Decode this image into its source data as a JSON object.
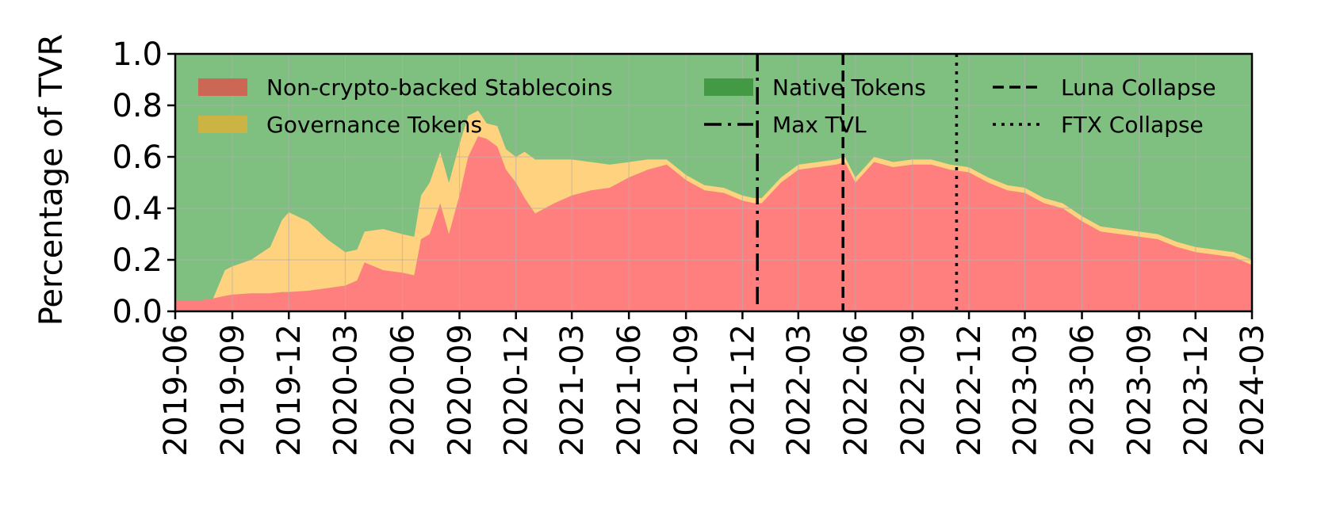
{
  "chart_data": {
    "type": "area",
    "title": "",
    "xlabel": "",
    "ylabel": "Percentage of TVR",
    "ylim": [
      0,
      1
    ],
    "xlim": [
      "2019-06",
      "2024-03"
    ],
    "grid": true,
    "legend_position": "top",
    "x_ticks": [
      "2019-06",
      "2019-09",
      "2019-12",
      "2020-03",
      "2020-06",
      "2020-09",
      "2020-12",
      "2021-03",
      "2021-06",
      "2021-09",
      "2021-12",
      "2022-03",
      "2022-06",
      "2022-09",
      "2022-12",
      "2023-03",
      "2023-06",
      "2023-09",
      "2023-12",
      "2024-03"
    ],
    "y_ticks": [
      "0.0",
      "0.2",
      "0.4",
      "0.6",
      "0.8",
      "1.0"
    ],
    "x": [
      "2019-06-01",
      "2019-07-01",
      "2019-08-01",
      "2019-08-20",
      "2019-09-01",
      "2019-10-01",
      "2019-11-01",
      "2019-11-20",
      "2019-12-01",
      "2020-01-01",
      "2020-02-01",
      "2020-03-01",
      "2020-03-20",
      "2020-04-01",
      "2020-05-01",
      "2020-06-01",
      "2020-06-20",
      "2020-07-01",
      "2020-07-15",
      "2020-08-01",
      "2020-08-15",
      "2020-09-01",
      "2020-09-15",
      "2020-10-01",
      "2020-10-15",
      "2020-11-01",
      "2020-11-15",
      "2020-12-01",
      "2020-12-15",
      "2021-01-01",
      "2021-02-01",
      "2021-03-01",
      "2021-04-01",
      "2021-05-01",
      "2021-06-01",
      "2021-07-01",
      "2021-08-01",
      "2021-09-01",
      "2021-10-01",
      "2021-11-01",
      "2021-12-01",
      "2021-12-20",
      "2022-01-01",
      "2022-02-01",
      "2022-03-01",
      "2022-04-01",
      "2022-05-01",
      "2022-05-15",
      "2022-06-01",
      "2022-07-01",
      "2022-08-01",
      "2022-09-01",
      "2022-10-01",
      "2022-11-01",
      "2022-12-01",
      "2023-01-01",
      "2023-02-01",
      "2023-03-01",
      "2023-04-01",
      "2023-05-01",
      "2023-06-01",
      "2023-07-01",
      "2023-08-01",
      "2023-09-01",
      "2023-10-01",
      "2023-11-01",
      "2023-12-01",
      "2024-01-01",
      "2024-02-01",
      "2024-03-01"
    ],
    "series": [
      {
        "name": "Non-crypto-backed Stablecoins",
        "color": "#ff7f7f",
        "values": [
          0.04,
          0.04,
          0.05,
          0.06,
          0.065,
          0.07,
          0.07,
          0.075,
          0.075,
          0.08,
          0.09,
          0.1,
          0.12,
          0.19,
          0.16,
          0.15,
          0.14,
          0.28,
          0.3,
          0.42,
          0.3,
          0.45,
          0.6,
          0.68,
          0.67,
          0.64,
          0.55,
          0.5,
          0.44,
          0.38,
          0.42,
          0.45,
          0.47,
          0.48,
          0.52,
          0.55,
          0.57,
          0.51,
          0.47,
          0.46,
          0.43,
          0.42,
          0.42,
          0.5,
          0.55,
          0.56,
          0.57,
          0.58,
          0.5,
          0.58,
          0.56,
          0.57,
          0.57,
          0.55,
          0.54,
          0.5,
          0.47,
          0.46,
          0.42,
          0.4,
          0.35,
          0.31,
          0.3,
          0.29,
          0.28,
          0.25,
          0.23,
          0.22,
          0.21,
          0.18
        ]
      },
      {
        "name": "Governance Tokens",
        "color": "#ffd27f",
        "values": [
          0.0,
          0.0,
          0.0,
          0.1,
          0.11,
          0.13,
          0.18,
          0.28,
          0.31,
          0.27,
          0.19,
          0.13,
          0.12,
          0.12,
          0.16,
          0.15,
          0.15,
          0.17,
          0.2,
          0.2,
          0.2,
          0.2,
          0.16,
          0.1,
          0.06,
          0.08,
          0.08,
          0.1,
          0.18,
          0.21,
          0.17,
          0.14,
          0.11,
          0.09,
          0.06,
          0.04,
          0.02,
          0.02,
          0.02,
          0.02,
          0.02,
          0.02,
          0.02,
          0.02,
          0.02,
          0.02,
          0.02,
          0.02,
          0.02,
          0.02,
          0.02,
          0.02,
          0.02,
          0.02,
          0.02,
          0.02,
          0.02,
          0.02,
          0.02,
          0.02,
          0.02,
          0.02,
          0.02,
          0.02,
          0.02,
          0.02,
          0.02,
          0.02,
          0.02,
          0.02
        ]
      },
      {
        "name": "Native Tokens",
        "color": "#7fbf7f",
        "values": [
          0.96,
          0.96,
          0.95,
          0.84,
          0.825,
          0.8,
          0.75,
          0.645,
          0.615,
          0.65,
          0.72,
          0.77,
          0.76,
          0.69,
          0.68,
          0.7,
          0.71,
          0.55,
          0.5,
          0.38,
          0.5,
          0.35,
          0.24,
          0.22,
          0.27,
          0.28,
          0.37,
          0.4,
          0.38,
          0.41,
          0.41,
          0.41,
          0.42,
          0.43,
          0.42,
          0.41,
          0.41,
          0.47,
          0.51,
          0.52,
          0.55,
          0.56,
          0.56,
          0.48,
          0.43,
          0.42,
          0.41,
          0.4,
          0.48,
          0.4,
          0.42,
          0.41,
          0.41,
          0.43,
          0.44,
          0.48,
          0.51,
          0.52,
          0.56,
          0.58,
          0.63,
          0.67,
          0.68,
          0.69,
          0.7,
          0.73,
          0.75,
          0.76,
          0.77,
          0.8
        ]
      }
    ],
    "vlines": [
      {
        "name": "Max TVL",
        "date": "2021-12-25",
        "style": "dashdot",
        "color": "#000000"
      },
      {
        "name": "Luna Collapse",
        "date": "2022-05-12",
        "style": "dashed",
        "color": "#000000"
      },
      {
        "name": "FTX Collapse",
        "date": "2022-11-11",
        "style": "dotted",
        "color": "#000000"
      }
    ],
    "legend": [
      {
        "label": "Non-crypto-backed Stablecoins",
        "kind": "patch",
        "color": "#cc6655"
      },
      {
        "label": "Governance Tokens",
        "kind": "patch",
        "color": "#ccb444"
      },
      {
        "label": "Native Tokens",
        "kind": "patch",
        "color": "#449944"
      },
      {
        "label": "Max TVL",
        "kind": "line",
        "style": "dashdot"
      },
      {
        "label": "Luna Collapse",
        "kind": "line",
        "style": "dashed"
      },
      {
        "label": "FTX Collapse",
        "kind": "line",
        "style": "dotted"
      }
    ]
  }
}
